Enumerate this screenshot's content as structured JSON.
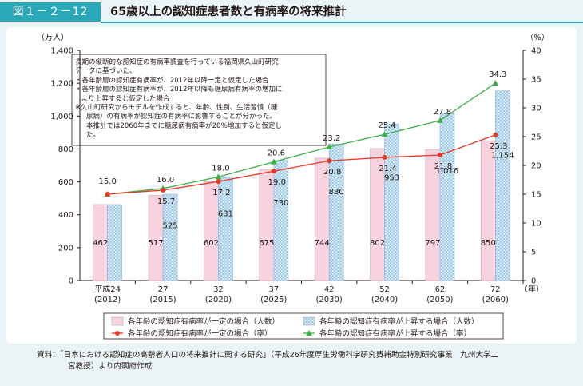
{
  "header": {
    "figure_label": "図１－２－12",
    "title": "65歳以上の認知症患者数と有病率の将来推計"
  },
  "note_box": {
    "lines": [
      "長期の縦断的な認知症の有病率調査を行っている福岡県久山町研究",
      "データに基づいた、",
      "・各年齢層の認知症有病率が、2012年以降一定と仮定した場合",
      "・各年齢層の認知症有病率が、2012年以降も糖尿病有病率の増加に",
      "より上昇すると仮定した場合",
      "※久山町研究からモデルを作成すると、年齢、性別、生活習慣（糖",
      "尿病）の有病率が認知症の有病率に影響することが分かった。",
      "本推計では2060年までに糖尿病有病率が20％増加すると仮定し",
      "た。"
    ]
  },
  "chart_data": {
    "type": "bar",
    "title": "65歳以上の認知症患者数と有病率の将来推計",
    "left_axis": {
      "unit_label": "（万人）",
      "min": 0,
      "max": 1400,
      "ticks": [
        0,
        200,
        400,
        600,
        800,
        "1,000",
        "1,200",
        "1,400"
      ]
    },
    "right_axis": {
      "unit_label": "（%）",
      "min": 0,
      "max": 40,
      "ticks": [
        0,
        5,
        10,
        15,
        20,
        25,
        30,
        35,
        40
      ]
    },
    "x_unit_label": "（年）",
    "categories": [
      {
        "top": "平成24",
        "bottom": "(2012)"
      },
      {
        "top": "27",
        "bottom": "(2015)"
      },
      {
        "top": "32",
        "bottom": "(2020)"
      },
      {
        "top": "37",
        "bottom": "(2025)"
      },
      {
        "top": "42",
        "bottom": "(2030)"
      },
      {
        "top": "52",
        "bottom": "(2040)"
      },
      {
        "top": "62",
        "bottom": "(2050)"
      },
      {
        "top": "72",
        "bottom": "(2060)"
      }
    ],
    "series": [
      {
        "name": "各年齢の認知症有病率が一定の場合（人数）",
        "kind": "bar",
        "color": "#f6d3df",
        "values": [
          462,
          517,
          602,
          675,
          744,
          802,
          797,
          850
        ],
        "labels": [
          "462",
          "517",
          "602",
          "675",
          "744",
          "802",
          "797",
          "850"
        ]
      },
      {
        "name": "各年齢の認知症有病率が上昇する場合（人数）",
        "kind": "bar",
        "color": "#cfe6f4",
        "values": [
          462,
          525,
          631,
          730,
          830,
          953,
          1016,
          1154
        ],
        "labels": [
          "",
          "525",
          "631",
          "730",
          "830",
          "953",
          "1,016",
          "1,154"
        ]
      },
      {
        "name": "各年齢の認知症有病率が一定の場合（率）",
        "kind": "line",
        "axis": "right",
        "color": "#e83828",
        "values": [
          15.0,
          15.7,
          17.2,
          19.0,
          20.8,
          21.4,
          21.8,
          25.3
        ],
        "labels": [
          "15.0",
          "15.7",
          "17.2",
          "19.0",
          "20.8",
          "21.4",
          "21.8",
          "25.3"
        ]
      },
      {
        "name": "各年齢の認知症有病率が上昇する場合（率）",
        "kind": "line",
        "axis": "right",
        "color": "#3fae49",
        "values": [
          15.0,
          16.0,
          18.0,
          20.6,
          23.2,
          25.4,
          27.8,
          34.3
        ],
        "labels": [
          "",
          "16.0",
          "18.0",
          "20.6",
          "23.2",
          "25.4",
          "27.8",
          "34.3"
        ]
      }
    ]
  },
  "source": {
    "line1": "資料：「日本における認知症の高齢者人口の将来推計に関する研究」（平成26年度厚生労働科学研究費補助金特別研究事業　九州大学二",
    "line2": "宮教授）より内閣府作成"
  }
}
